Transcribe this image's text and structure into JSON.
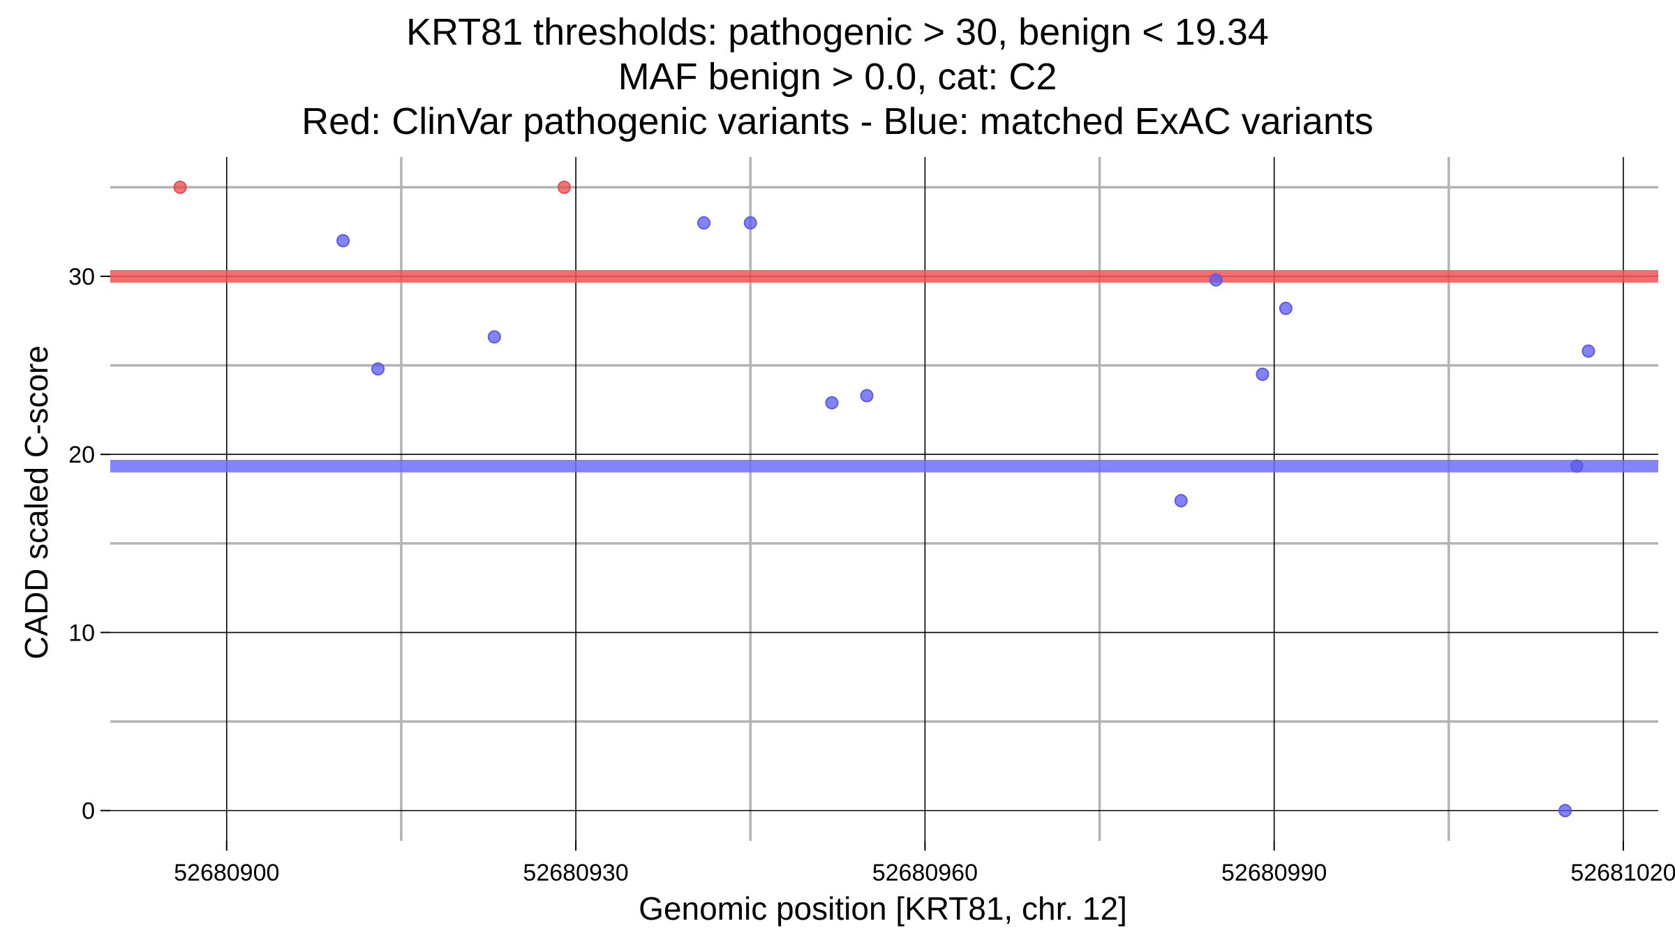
{
  "chart_data": {
    "type": "scatter",
    "title": [
      "KRT81 thresholds: pathogenic > 30, benign < 19.34",
      "MAF benign > 0.0, cat: C2",
      "Red: ClinVar pathogenic variants - Blue: matched ExAC variants"
    ],
    "xlabel": "Genomic position [KRT81, chr. 12]",
    "ylabel": "CADD scaled C-score",
    "xlim": [
      52680890,
      52681023
    ],
    "ylim": [
      -1.7,
      36.7
    ],
    "x_ticks": [
      52680900,
      52680930,
      52680960,
      52680990,
      52681020
    ],
    "x_tick_labels": [
      "52680900",
      "52680930",
      "52680960",
      "52680990",
      "52681020"
    ],
    "x_minor_grid": [
      52680915,
      52680945,
      52680975,
      52681005
    ],
    "y_ticks": [
      0,
      10,
      20,
      30
    ],
    "y_tick_labels": [
      "0",
      "10",
      "20",
      "30"
    ],
    "y_minor_grid": [
      5,
      15,
      25,
      35
    ],
    "thresholds": [
      {
        "name": "pathogenic",
        "value": 30,
        "color": "#ee5555"
      },
      {
        "name": "benign",
        "value": 19.34,
        "color": "#6f6ff7"
      }
    ],
    "series": [
      {
        "name": "ClinVar pathogenic variants",
        "color": "#e84a4a",
        "points": [
          {
            "x": 52680896,
            "y": 35
          },
          {
            "x": 52680929,
            "y": 35
          }
        ]
      },
      {
        "name": "matched ExAC variants",
        "color": "#5a5af0",
        "points": [
          {
            "x": 52680910,
            "y": 32
          },
          {
            "x": 52680913,
            "y": 24.8
          },
          {
            "x": 52680923,
            "y": 26.6
          },
          {
            "x": 52680941,
            "y": 33
          },
          {
            "x": 52680945,
            "y": 33
          },
          {
            "x": 52680952,
            "y": 22.9
          },
          {
            "x": 52680955,
            "y": 23.3
          },
          {
            "x": 52680982,
            "y": 17.4
          },
          {
            "x": 52680985,
            "y": 29.8
          },
          {
            "x": 52680989,
            "y": 24.5
          },
          {
            "x": 52680991,
            "y": 28.2
          },
          {
            "x": 52681015,
            "y": 0
          },
          {
            "x": 52681016,
            "y": 19.34
          },
          {
            "x": 52681017,
            "y": 25.8
          }
        ]
      }
    ]
  }
}
